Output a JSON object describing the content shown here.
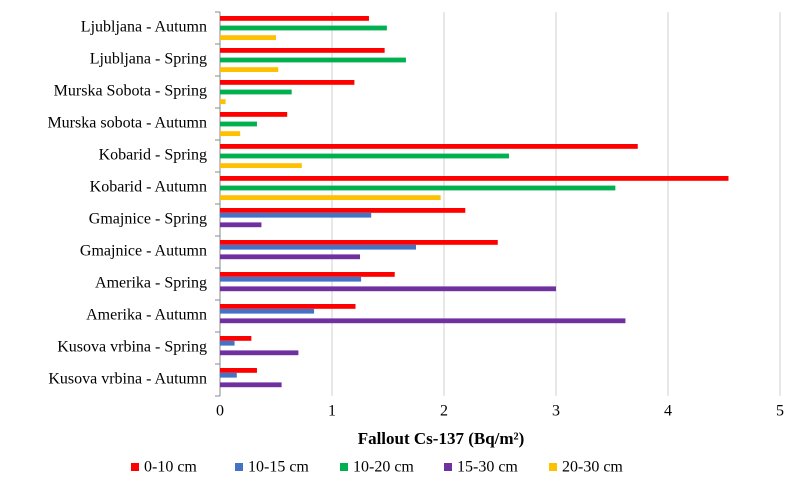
{
  "chart_data": {
    "type": "hbar",
    "xlabel": "Fallout Cs-137 (Bq/m²)",
    "categories": [
      "Ljubljana - Autumn",
      "Ljubljana - Spring",
      "Murska Sobota - Spring",
      "Murska sobota - Autumn",
      "Kobarid - Spring",
      "Kobarid - Autumn",
      "Gmajnice - Spring",
      "Gmajnice - Autumn",
      "Amerika - Spring",
      "Amerika - Autumn",
      "Kusova vrbina - Spring",
      "Kusova vrbina - Autumn"
    ],
    "series": [
      {
        "name": "0-10 cm",
        "color": "#ff0000",
        "values": [
          1.33,
          1.47,
          1.2,
          0.6,
          3.73,
          4.54,
          2.19,
          2.48,
          1.56,
          1.21,
          0.28,
          0.33
        ]
      },
      {
        "name": "10-15 cm",
        "color": "#4472c4",
        "values": [
          null,
          null,
          null,
          null,
          null,
          null,
          1.35,
          1.75,
          1.26,
          0.84,
          0.13,
          0.15
        ]
      },
      {
        "name": "10-20 cm",
        "color": "#00b050",
        "values": [
          1.49,
          1.66,
          0.64,
          0.33,
          2.58,
          3.53,
          null,
          null,
          null,
          null,
          null,
          null
        ]
      },
      {
        "name": "15-30 cm",
        "color": "#7030a0",
        "values": [
          null,
          null,
          null,
          null,
          null,
          null,
          0.37,
          1.25,
          3.0,
          3.62,
          0.7,
          0.55
        ]
      },
      {
        "name": "20-30 cm",
        "color": "#ffc000",
        "values": [
          0.5,
          0.52,
          0.05,
          0.18,
          0.73,
          1.97,
          null,
          null,
          null,
          null,
          null,
          null
        ]
      }
    ],
    "xlim": [
      0,
      5
    ],
    "xticks": [
      0,
      1,
      2,
      3,
      4,
      5
    ],
    "grid": true,
    "legend": "bottom"
  }
}
